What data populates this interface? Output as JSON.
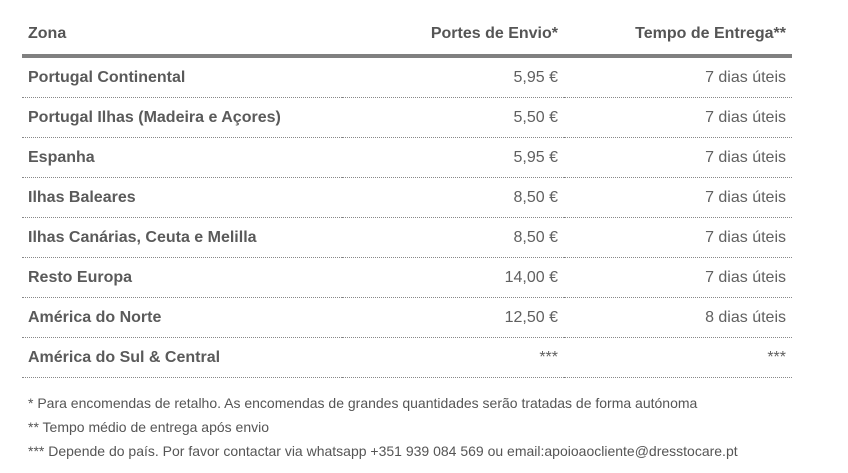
{
  "table": {
    "headers": [
      "Zona",
      "Portes de Envio*",
      "Tempo de Entrega**"
    ],
    "rows": [
      [
        "Portugal Continental",
        "5,95 €",
        "7 dias úteis"
      ],
      [
        "Portugal Ilhas (Madeira e Açores)",
        "5,50 €",
        "7 dias úteis"
      ],
      [
        "Espanha",
        "5,95 €",
        "7 dias úteis"
      ],
      [
        "Ilhas Baleares",
        "8,50 €",
        "7 dias úteis"
      ],
      [
        "Ilhas Canárias, Ceuta e Melilla",
        "8,50 €",
        "7 dias úteis"
      ],
      [
        "Resto Europa",
        "14,00 €",
        "7 dias úteis"
      ],
      [
        "América do Norte",
        "12,50 €",
        "8 dias úteis"
      ],
      [
        "América do Sul & Central",
        "***",
        "***"
      ]
    ]
  },
  "notes": [
    "* Para encomendas de retalho. As encomendas de grandes quantidades serão tratadas de forma autónoma",
    "** Tempo médio de entrega após envio",
    "*** Depende do país. Por favor contactar via whatsapp +351 939 084 569 ou email:apoioaocliente@dresstocare.pt"
  ]
}
